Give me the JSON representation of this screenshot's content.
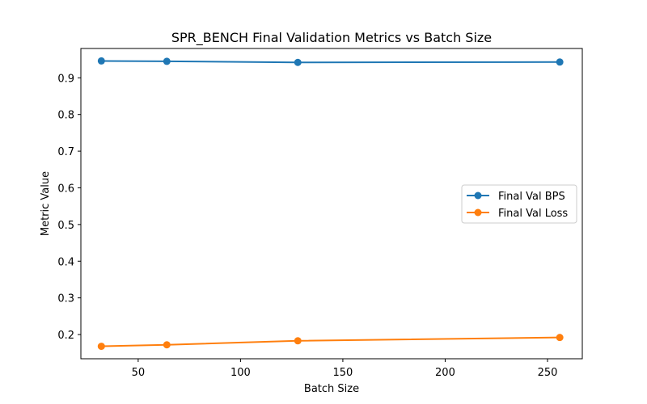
{
  "chart_data": {
    "type": "line",
    "title": "SPR_BENCH Final Validation Metrics vs Batch Size",
    "xlabel": "Batch Size",
    "ylabel": "Metric Value",
    "x": [
      32,
      64,
      128,
      256
    ],
    "xlim": [
      22,
      267
    ],
    "ylim": [
      0.134,
      0.98
    ],
    "xticks": [
      50,
      100,
      150,
      200,
      250
    ],
    "yticks": [
      0.2,
      0.3,
      0.4,
      0.5,
      0.6,
      0.7,
      0.8,
      0.9
    ],
    "grid": false,
    "legend_position": "center-right",
    "series": [
      {
        "name": "Final Val BPS",
        "color": "#1f77b4",
        "values": [
          0.946,
          0.945,
          0.942,
          0.943
        ]
      },
      {
        "name": "Final Val Loss",
        "color": "#ff7f0e",
        "values": [
          0.168,
          0.172,
          0.183,
          0.192
        ]
      }
    ]
  }
}
